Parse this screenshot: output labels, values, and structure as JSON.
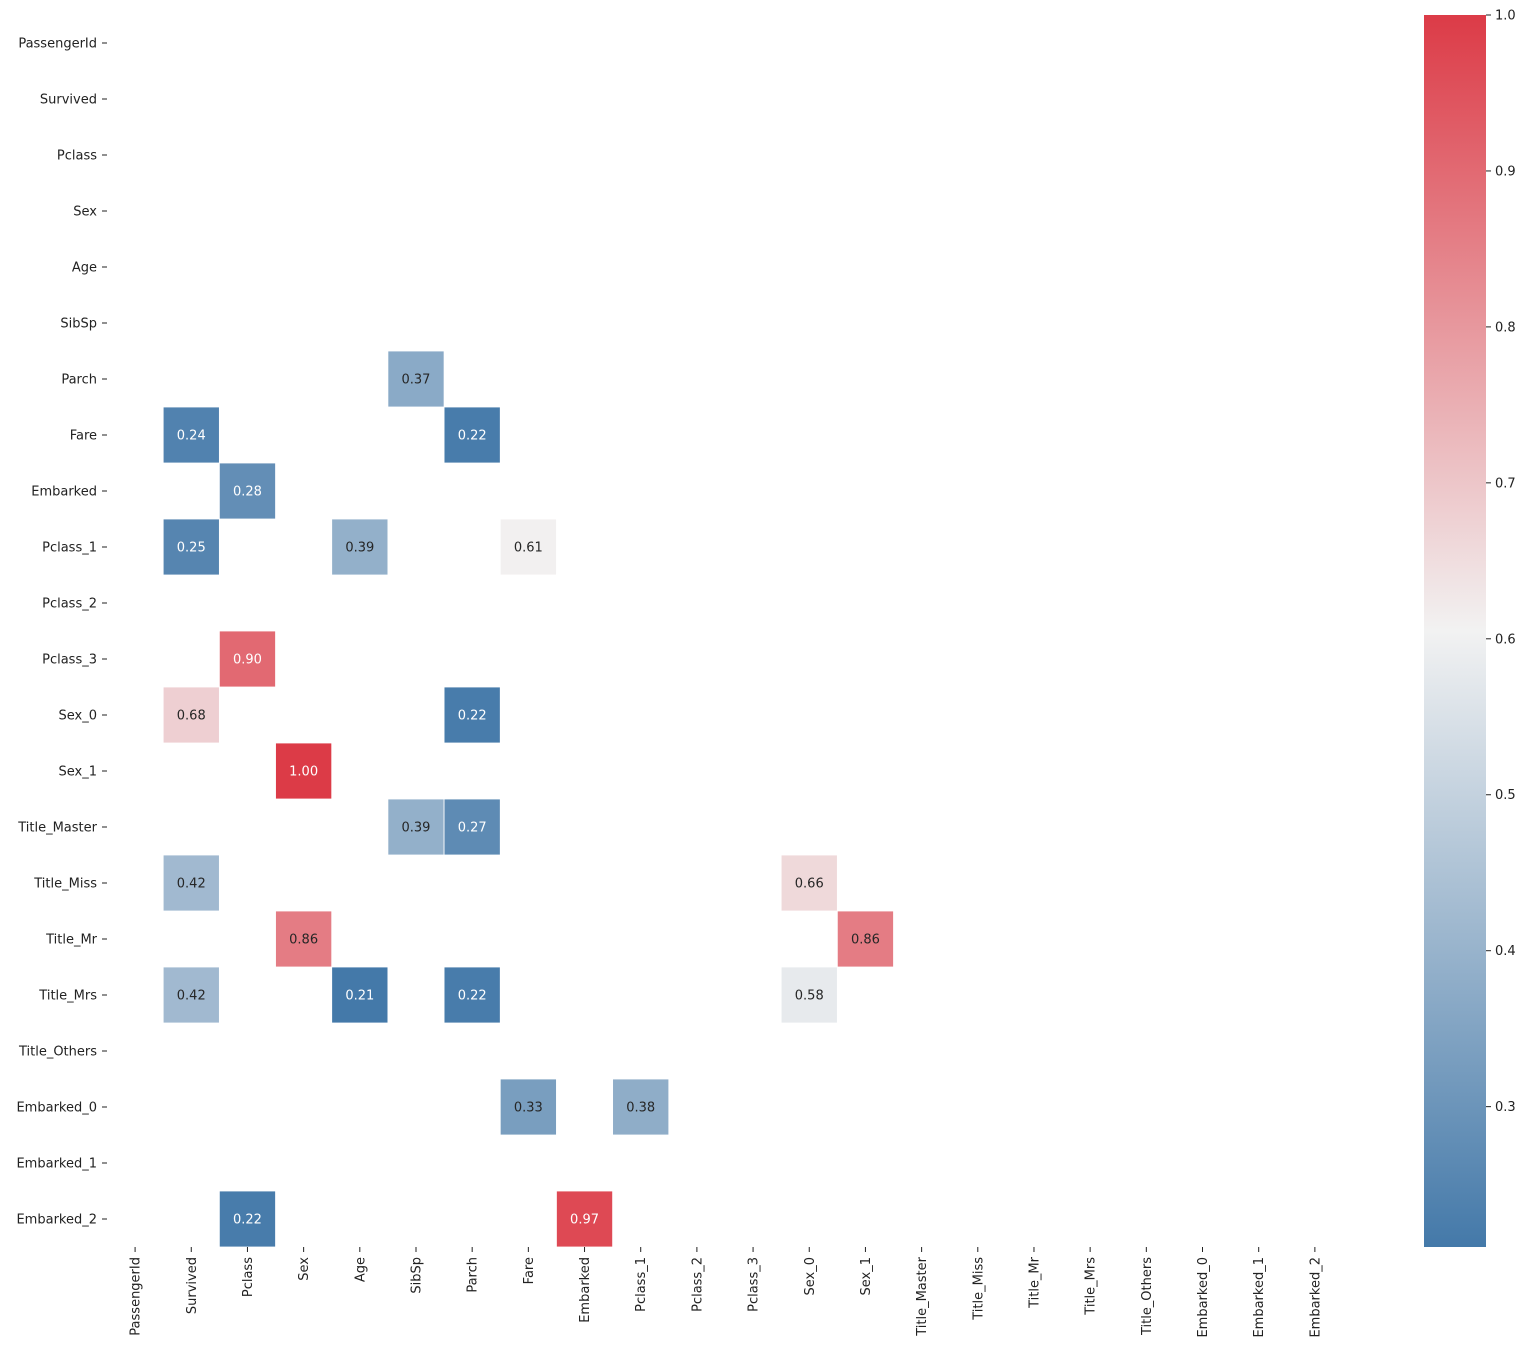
{
  "chart_data": {
    "type": "heatmap",
    "title": "",
    "xlabel": "",
    "ylabel": "",
    "labels": [
      "PassengerId",
      "Survived",
      "Pclass",
      "Sex",
      "Age",
      "SibSp",
      "Parch",
      "Fare",
      "Embarked",
      "Pclass_1",
      "Pclass_2",
      "Pclass_3",
      "Sex_0",
      "Sex_1",
      "Title_Master",
      "Title_Miss",
      "Title_Mr",
      "Title_Mrs",
      "Title_Others",
      "Embarked_0",
      "Embarked_1",
      "Embarked_2"
    ],
    "cells": [
      {
        "row": "Parch",
        "col": "SibSp",
        "value": 0.37,
        "label": "0.37"
      },
      {
        "row": "Fare",
        "col": "Survived",
        "value": 0.24,
        "label": "0.24"
      },
      {
        "row": "Fare",
        "col": "Parch",
        "value": 0.22,
        "label": "0.22"
      },
      {
        "row": "Embarked",
        "col": "Pclass",
        "value": 0.28,
        "label": "0.28"
      },
      {
        "row": "Pclass_1",
        "col": "Survived",
        "value": 0.25,
        "label": "0.25"
      },
      {
        "row": "Pclass_1",
        "col": "Age",
        "value": 0.39,
        "label": "0.39"
      },
      {
        "row": "Pclass_1",
        "col": "Fare",
        "value": 0.61,
        "label": "0.61"
      },
      {
        "row": "Pclass_3",
        "col": "Pclass",
        "value": 0.9,
        "label": "0.90"
      },
      {
        "row": "Sex_0",
        "col": "Survived",
        "value": 0.68,
        "label": "0.68"
      },
      {
        "row": "Sex_0",
        "col": "Parch",
        "value": 0.22,
        "label": "0.22"
      },
      {
        "row": "Sex_1",
        "col": "Sex",
        "value": 1.0,
        "label": "1.00"
      },
      {
        "row": "Title_Master",
        "col": "SibSp",
        "value": 0.39,
        "label": "0.39"
      },
      {
        "row": "Title_Master",
        "col": "Parch",
        "value": 0.27,
        "label": "0.27"
      },
      {
        "row": "Title_Miss",
        "col": "Survived",
        "value": 0.42,
        "label": "0.42"
      },
      {
        "row": "Title_Miss",
        "col": "Sex_0",
        "value": 0.66,
        "label": "0.66"
      },
      {
        "row": "Title_Mr",
        "col": "Sex",
        "value": 0.86,
        "label": "0.86"
      },
      {
        "row": "Title_Mr",
        "col": "Sex_1",
        "value": 0.86,
        "label": "0.86"
      },
      {
        "row": "Title_Mrs",
        "col": "Survived",
        "value": 0.42,
        "label": "0.42"
      },
      {
        "row": "Title_Mrs",
        "col": "Age",
        "value": 0.21,
        "label": "0.21"
      },
      {
        "row": "Title_Mrs",
        "col": "Parch",
        "value": 0.22,
        "label": "0.22"
      },
      {
        "row": "Title_Mrs",
        "col": "Sex_0",
        "value": 0.58,
        "label": "0.58"
      },
      {
        "row": "Embarked_0",
        "col": "Fare",
        "value": 0.33,
        "label": "0.33"
      },
      {
        "row": "Embarked_0",
        "col": "Pclass_1",
        "value": 0.38,
        "label": "0.38"
      },
      {
        "row": "Embarked_2",
        "col": "Pclass",
        "value": 0.22,
        "label": "0.22"
      },
      {
        "row": "Embarked_2",
        "col": "Embarked",
        "value": 0.97,
        "label": "0.97"
      }
    ],
    "colorbar": {
      "vmin": 0.21,
      "vmax": 1.0,
      "ticks": [
        0.3,
        0.4,
        0.5,
        0.6,
        0.7,
        0.8,
        0.9,
        1.0
      ],
      "tick_labels": [
        "0.3",
        "0.4",
        "0.5",
        "0.6",
        "0.7",
        "0.8",
        "0.9",
        "1.0"
      ],
      "colors": {
        "low": "#4479a9",
        "mid": "#f2f2f2",
        "high": "#dc3b47"
      },
      "mid_value": 0.605
    },
    "grid": false,
    "legend": "colorbar-right"
  }
}
